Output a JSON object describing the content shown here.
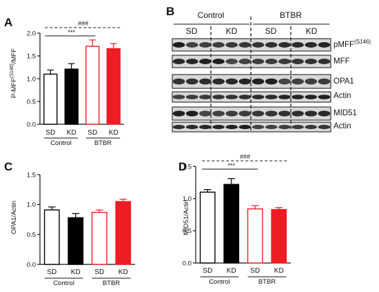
{
  "figure": {
    "panels": {
      "A": {
        "letter": "A",
        "ylabel": "P-MFF(S146)/MFF",
        "ylabel_main": "P-MFF",
        "ylabel_sup": "(S146)",
        "ylabel_tail": "/MFF"
      },
      "B": {
        "letter": "B"
      },
      "C": {
        "letter": "C",
        "ylabel": "OPA1/Actin"
      },
      "D": {
        "letter": "D",
        "ylabel": "MID51/Actin"
      }
    },
    "x_categories": [
      "SD",
      "KD",
      "SD",
      "KD"
    ],
    "groups": [
      "Control",
      "BTBR"
    ],
    "colors": {
      "control_edge": "#000000",
      "btbr_edge": "#ee1c25",
      "sd_fill": "#ffffff",
      "kd_control_fill": "#000000",
      "kd_btbr_fill": "#ee1c25"
    },
    "blot": {
      "headers": [
        "Control",
        "BTBR"
      ],
      "subheaders": [
        "SD",
        "KD",
        "SD",
        "KD"
      ],
      "bands": [
        {
          "name": "pMFF",
          "label": "pMFF",
          "sup": "(S146)"
        },
        {
          "name": "MFF",
          "label": "MFF"
        },
        {
          "name": "OPA1",
          "label": "OPA1"
        },
        {
          "name": "Actin-1",
          "label": "Actin"
        },
        {
          "name": "MID51",
          "label": "MID51"
        },
        {
          "name": "Actin-2",
          "label": "Actin"
        }
      ]
    }
  },
  "chart_data": [
    {
      "panel": "A",
      "type": "bar",
      "categories": [
        "SD",
        "KD",
        "SD",
        "KD"
      ],
      "groups": [
        "Control",
        "BTBR"
      ],
      "values": [
        1.1,
        1.21,
        1.71,
        1.66
      ],
      "errors": [
        0.09,
        0.12,
        0.14,
        0.11
      ],
      "ylim": [
        0,
        2.0
      ],
      "yticks": [
        "0.0",
        "0.5",
        "1.0",
        "1.5",
        "2.0"
      ],
      "ylabel": "P-MFF(S146)/MFF",
      "annotations": [
        {
          "text": "***",
          "from": 0,
          "to": 2
        },
        {
          "text": "###",
          "from": 0,
          "to": 3,
          "dashed": true
        }
      ]
    },
    {
      "panel": "C",
      "type": "bar",
      "categories": [
        "SD",
        "KD",
        "SD",
        "KD"
      ],
      "groups": [
        "Control",
        "BTBR"
      ],
      "values": [
        0.91,
        0.78,
        0.87,
        1.05
      ],
      "errors": [
        0.05,
        0.07,
        0.04,
        0.04
      ],
      "ylim": [
        0,
        1.5
      ],
      "yticks": [
        "0.0",
        "0.5",
        "1.0",
        "1.5"
      ],
      "ylabel": "OPA1/Actin",
      "annotations": []
    },
    {
      "panel": "D",
      "type": "bar",
      "categories": [
        "SD",
        "KD",
        "SD",
        "KD"
      ],
      "groups": [
        "Control",
        "BTBR"
      ],
      "values": [
        1.1,
        1.22,
        0.84,
        0.83
      ],
      "errors": [
        0.04,
        0.09,
        0.05,
        0.03
      ],
      "ylim": [
        0,
        1.5
      ],
      "yticks": [
        "0.0",
        "0.5",
        "1.0",
        "1.5"
      ],
      "ylabel": "MID51/Actin",
      "annotations": [
        {
          "text": "***",
          "from": 0,
          "to": 2
        },
        {
          "text": "###",
          "from": 0,
          "to": 3,
          "dashed": true
        }
      ]
    }
  ]
}
